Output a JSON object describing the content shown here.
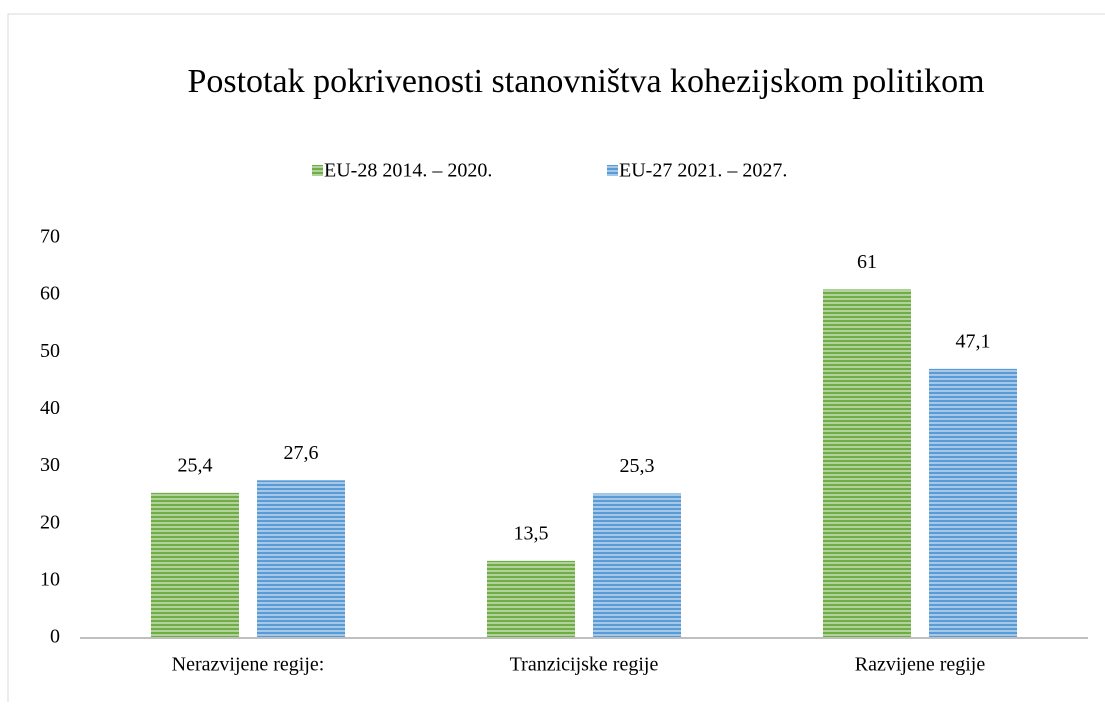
{
  "chart_data": {
    "type": "bar",
    "title": "Postotak pokrivenosti stanovništva kohezijskom politikom",
    "categories": [
      "Nerazvijene regije:",
      "Tranzicijske regije",
      "Razvijene regije"
    ],
    "series": [
      {
        "name": "EU-28 2014. – 2020.",
        "color": "#70ad47",
        "values": [
          25.4,
          13.5,
          61
        ],
        "value_labels": [
          "25,4",
          "13,5",
          "61"
        ]
      },
      {
        "name": "EU-27 2021. – 2027.",
        "color": "#5b9bd5",
        "values": [
          27.6,
          25.3,
          47.1
        ],
        "value_labels": [
          "27,6",
          "25,3",
          "47,1"
        ]
      }
    ],
    "ylim": [
      0,
      70
    ],
    "yticks": [
      0,
      10,
      20,
      30,
      40,
      50,
      60,
      70
    ],
    "grid": false,
    "legend": "top"
  }
}
